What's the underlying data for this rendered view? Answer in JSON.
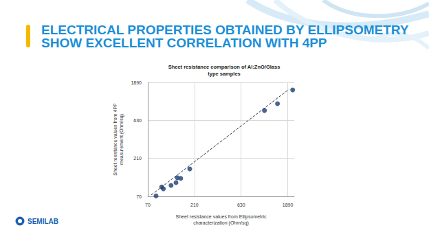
{
  "heading": [
    "ELECTRICAL PROPERTIES OBTAINED BY ELLIPSOMETRY",
    "SHOW EXCELLENT CORRELATION WITH 4PP"
  ],
  "logo": "SEMILAB",
  "chart_data": {
    "type": "scatter",
    "title": "Sheet resistance comparison of Al:ZnO/Glass\ntype samples",
    "x_label": "Sheet resistance values from Ellipsometric\ncharacterization (Ohm/sq)",
    "y_label": "Sheet resistance values from 4PP\nmeasurement (Ohm/sq)",
    "log": true,
    "grid": true,
    "xlim": [
      70,
      2200
    ],
    "xticks": [
      70,
      210,
      630,
      1890
    ],
    "ylim": [
      70,
      1890
    ],
    "yticks": [
      70,
      210,
      630,
      1890
    ],
    "series": [
      {
        "type": "scatter",
        "color": "#1c3f74",
        "marker": "circle",
        "x": [
          85,
          97,
          101,
          121,
          136,
          140,
          152,
          188,
          1091,
          1483,
          2120
        ],
        "values": [
          71,
          92,
          87,
          96,
          104,
          120,
          118,
          155,
          839,
          1023,
          1520
        ]
      },
      {
        "type": "line",
        "color": "#33334d",
        "line_style": "dashed",
        "x": [
          76,
          1950
        ],
        "values": [
          73,
          1555
        ]
      }
    ]
  }
}
